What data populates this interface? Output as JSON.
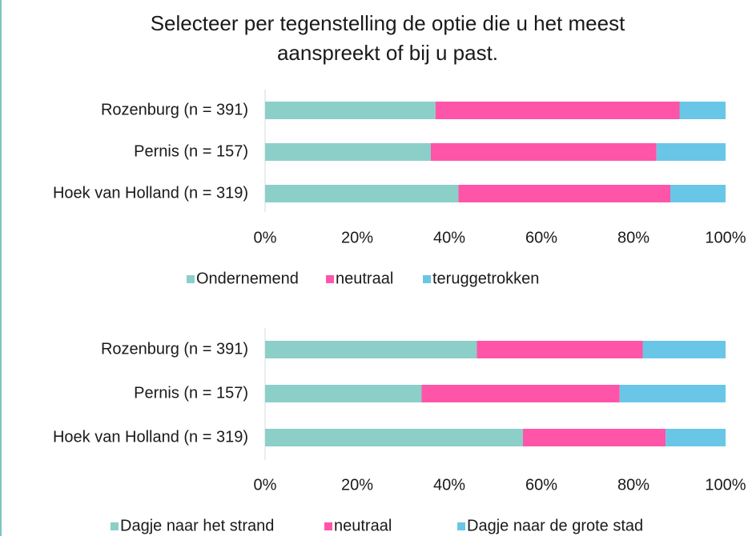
{
  "title": [
    "Selecteer per tegenstelling de optie die u het meest",
    "aanspreekt of bij u past."
  ],
  "chart_data": [
    {
      "type": "bar",
      "orientation": "horizontal",
      "stacked": true,
      "categories": [
        "Rozenburg (n = 391)",
        "Pernis (n = 157)",
        "Hoek van Holland (n = 319)"
      ],
      "series": [
        {
          "name": "Ondernemend",
          "color": "#8ccfc9",
          "values": [
            37,
            36,
            42
          ]
        },
        {
          "name": "neutraal",
          "color": "#ff55a8",
          "values": [
            53,
            49,
            46
          ]
        },
        {
          "name": "teruggetrokken",
          "color": "#6ac6e6",
          "values": [
            10,
            15,
            12
          ]
        }
      ],
      "xlim": [
        0,
        100
      ],
      "xticks": [
        {
          "value": 0,
          "label": "0%"
        },
        {
          "value": 20,
          "label": "20%"
        },
        {
          "value": 40,
          "label": "40%"
        },
        {
          "value": 60,
          "label": "60%"
        },
        {
          "value": 80,
          "label": "80%"
        },
        {
          "value": 100,
          "label": "100%"
        }
      ],
      "legend": "bottom"
    },
    {
      "type": "bar",
      "orientation": "horizontal",
      "stacked": true,
      "categories": [
        "Rozenburg (n = 391)",
        "Pernis (n = 157)",
        "Hoek van Holland (n = 319)"
      ],
      "series": [
        {
          "name": "Dagje naar het strand",
          "color": "#8ccfc9",
          "values": [
            46,
            34,
            56
          ]
        },
        {
          "name": "neutraal",
          "color": "#ff55a8",
          "values": [
            36,
            43,
            31
          ]
        },
        {
          "name": "Dagje naar de grote stad",
          "color": "#6ac6e6",
          "values": [
            18,
            23,
            13
          ]
        }
      ],
      "xlim": [
        0,
        100
      ],
      "xticks": [
        {
          "value": 0,
          "label": "0%"
        },
        {
          "value": 20,
          "label": "20%"
        },
        {
          "value": 40,
          "label": "40%"
        },
        {
          "value": 60,
          "label": "60%"
        },
        {
          "value": 80,
          "label": "80%"
        },
        {
          "value": 100,
          "label": "100%"
        }
      ],
      "legend": "bottom"
    }
  ]
}
